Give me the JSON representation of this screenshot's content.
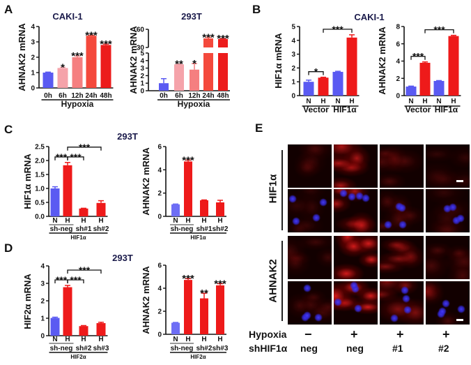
{
  "panels": {
    "A": "A",
    "B": "B",
    "C": "C",
    "D": "D",
    "E": "E"
  },
  "colors": {
    "blue": "#5a5af2",
    "red": "#ee1a1a",
    "pink1": "#f5a3aa",
    "pink2": "#f57f80",
    "red1": "#f4493c",
    "red2": "#ec1c1c"
  },
  "chart_data": [
    {
      "type": "bar",
      "panel": "A",
      "title": "CAKI-1",
      "ylabel": "AHNAK2 mRNA",
      "ylim": [
        0,
        4
      ],
      "yticks": [
        "0",
        "1",
        "2",
        "3",
        "4"
      ],
      "categories": [
        "0h",
        "6h",
        "12h",
        "24h",
        "48h"
      ],
      "values": [
        1.0,
        1.3,
        2.0,
        3.4,
        2.8
      ],
      "errors": [
        0.03,
        0.05,
        0.08,
        0.04,
        0.06
      ],
      "stars": [
        "",
        "*",
        "***",
        "***",
        "***"
      ],
      "bar_colors": [
        "#5a5af2",
        "#f5a3aa",
        "#f57f80",
        "#f4493c",
        "#ec1c1c"
      ],
      "group_label": "Hypoxia",
      "brackets": []
    },
    {
      "type": "bar",
      "panel": "A",
      "title": "293T",
      "ylabel": "AHNAK2 mRNA",
      "ylim": [
        0,
        60
      ],
      "axis_break": [
        5,
        30
      ],
      "yticks": [
        "0",
        "1",
        "2",
        "3",
        "4",
        "5",
        "30",
        "60"
      ],
      "categories": [
        "0h",
        "6h",
        "12h",
        "24h",
        "48h"
      ],
      "values": [
        1.0,
        3.5,
        2.8,
        45,
        44
      ],
      "errors": [
        0.6,
        0.05,
        0.8,
        2,
        1
      ],
      "stars": [
        "",
        "**",
        "*",
        "***",
        "***"
      ],
      "bar_colors": [
        "#5a5af2",
        "#f5a3aa",
        "#f57f80",
        "#f4493c",
        "#ec1c1c"
      ],
      "group_label": "Hypoxia",
      "brackets": []
    },
    {
      "type": "bar",
      "panel": "B",
      "title": "CAKI-1",
      "ylabel": "HIF1α  mRNA",
      "ylim": [
        0,
        5
      ],
      "yticks": [
        "0",
        "1",
        "2",
        "3",
        "4",
        "5"
      ],
      "categories": [
        "N",
        "H",
        "N",
        "H"
      ],
      "values": [
        1.0,
        1.3,
        1.72,
        4.2
      ],
      "errors": [
        0.12,
        0.03,
        0.04,
        0.2
      ],
      "stars": [
        "",
        "",
        "",
        ""
      ],
      "bar_colors": [
        "#5a5af2",
        "#ee1a1a",
        "#5a5af2",
        "#ee1a1a"
      ],
      "sub_labels": [
        {
          "label": "Vector",
          "span": [
            0,
            1
          ]
        },
        {
          "label": "HIF1α",
          "span": [
            2,
            3
          ]
        }
      ],
      "brackets": [
        {
          "from": 0,
          "to": 1,
          "label": "*"
        },
        {
          "from": 1,
          "to": 3,
          "label": "***"
        }
      ]
    },
    {
      "type": "bar",
      "panel": "B",
      "title": "",
      "ylabel": "AHNAK2 mRNA",
      "ylim": [
        0,
        8
      ],
      "yticks": [
        "0",
        "2",
        "4",
        "6",
        "8"
      ],
      "categories": [
        "N",
        "H",
        "N",
        "H"
      ],
      "values": [
        1.05,
        3.8,
        1.7,
        6.9
      ],
      "errors": [
        0.05,
        0.1,
        0.04,
        0.08
      ],
      "stars": [
        "",
        "",
        "",
        ""
      ],
      "bar_colors": [
        "#5a5af2",
        "#ee1a1a",
        "#5a5af2",
        "#ee1a1a"
      ],
      "sub_labels": [
        {
          "label": "Vector",
          "span": [
            0,
            1
          ]
        },
        {
          "label": "HIF1α",
          "span": [
            2,
            3
          ]
        }
      ],
      "brackets": [
        {
          "from": 0,
          "to": 1,
          "label": "***"
        },
        {
          "from": 1,
          "to": 3,
          "label": "***"
        }
      ]
    },
    {
      "type": "bar",
      "panel": "C",
      "title": "293T",
      "ylabel": "HIF1α  mRNA",
      "ylim": [
        0,
        2.5
      ],
      "yticks": [
        "0.0",
        "0.5",
        "1.0",
        "1.5",
        "2.0",
        "2.5"
      ],
      "categories": [
        "N",
        "H",
        "H",
        "H"
      ],
      "values": [
        1.0,
        1.83,
        0.28,
        0.48
      ],
      "errors": [
        0.06,
        0.1,
        0.01,
        0.08
      ],
      "stars": [
        "",
        "",
        "",
        ""
      ],
      "bar_colors": [
        "#5a5af2",
        "#ee1a1a",
        "#ee1a1a",
        "#ee1a1a"
      ],
      "sub_labels": [
        {
          "label": "sh-neg",
          "span": [
            0,
            1
          ]
        },
        {
          "label": "sh#1",
          "span": [
            2,
            2
          ]
        },
        {
          "label": "sh#2",
          "span": [
            3,
            3
          ]
        }
      ],
      "group_label": "HIF1α",
      "brackets": [
        {
          "from": 0,
          "to": 1,
          "label": "***"
        },
        {
          "from": 1,
          "to": 2,
          "label": "***"
        },
        {
          "from": 1,
          "to": 3,
          "label": "***"
        }
      ]
    },
    {
      "type": "bar",
      "panel": "C",
      "title": "",
      "ylabel": "AHNAK2 mRNA",
      "ylim": [
        0,
        6
      ],
      "yticks": [
        "0",
        "2",
        "4",
        "6"
      ],
      "categories": [
        "N",
        "H",
        "H",
        "H"
      ],
      "values": [
        1.03,
        4.72,
        1.38,
        1.2
      ],
      "errors": [
        0.03,
        0.12,
        0.03,
        0.18
      ],
      "stars": [
        "",
        "***",
        "",
        ""
      ],
      "bar_colors": [
        "#6e6ef5",
        "#ee1a1a",
        "#ee1a1a",
        "#ee1a1a"
      ],
      "sub_labels": [
        {
          "label": "sh-neg",
          "span": [
            0,
            1
          ]
        },
        {
          "label": "sh#1",
          "span": [
            2,
            2
          ]
        },
        {
          "label": "sh#2",
          "span": [
            3,
            3
          ]
        }
      ],
      "group_label": "HIF1α",
      "brackets": []
    },
    {
      "type": "bar",
      "panel": "D",
      "title": "293T",
      "ylabel": "HIF2α  mRNA",
      "ylim": [
        0,
        4
      ],
      "yticks": [
        "0",
        "1",
        "2",
        "3",
        "4"
      ],
      "categories": [
        "N",
        "H",
        "H",
        "H"
      ],
      "values": [
        1.02,
        2.78,
        0.55,
        0.72
      ],
      "errors": [
        0.04,
        0.1,
        0.03,
        0.05
      ],
      "stars": [
        "",
        "",
        "",
        ""
      ],
      "bar_colors": [
        "#5a5af2",
        "#ee1a1a",
        "#ee1a1a",
        "#ee1a1a"
      ],
      "sub_labels": [
        {
          "label": "sh-neg",
          "span": [
            0,
            1
          ]
        },
        {
          "label": "sh#2",
          "span": [
            2,
            2
          ]
        },
        {
          "label": "sh#3",
          "span": [
            3,
            3
          ]
        }
      ],
      "group_label": "HIF2α",
      "brackets": [
        {
          "from": 0,
          "to": 1,
          "label": "***"
        },
        {
          "from": 1,
          "to": 2,
          "label": "***"
        },
        {
          "from": 1,
          "to": 3,
          "label": "***"
        }
      ]
    },
    {
      "type": "bar",
      "panel": "D",
      "title": "",
      "ylabel": "AHNAK2 mRNA",
      "ylim": [
        0,
        6
      ],
      "yticks": [
        "0",
        "2",
        "4",
        "6"
      ],
      "categories": [
        "N",
        "H",
        "H",
        "H"
      ],
      "values": [
        1.0,
        4.72,
        3.12,
        4.25
      ],
      "errors": [
        0.03,
        0.12,
        0.45,
        0.15
      ],
      "stars": [
        "",
        "***",
        "**",
        "***"
      ],
      "bar_colors": [
        "#6e6ef5",
        "#ee1a1a",
        "#ee1a1a",
        "#ee1a1a"
      ],
      "sub_labels": [
        {
          "label": "sh-neg",
          "span": [
            0,
            1
          ]
        },
        {
          "label": "sh#2",
          "span": [
            2,
            2
          ]
        },
        {
          "label": "sh#3",
          "span": [
            3,
            3
          ]
        }
      ],
      "group_label": "HIF2α",
      "brackets": []
    }
  ],
  "panel_e": {
    "row_labels": [
      "HIF1α",
      "AHNAK2"
    ],
    "condition_labels": {
      "hypoxia": "Hypoxia",
      "sh": "shHIF1α"
    },
    "hypoxia": [
      "−",
      "+",
      "+",
      "+"
    ],
    "sh": [
      "neg",
      "neg",
      "#1",
      "#2"
    ]
  }
}
